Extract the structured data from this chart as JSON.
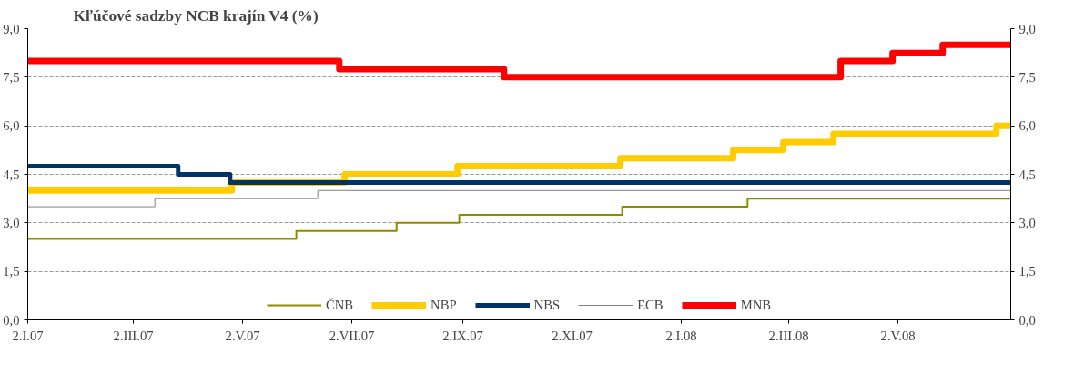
{
  "chart_data": {
    "type": "step",
    "title": "Kľúčové sadzby NCB krajín V4 (%)",
    "xlim": [
      "2007-01-02",
      "2008-07-04"
    ],
    "xticks": [
      {
        "value": "2007-01-02",
        "label": "2.I.07"
      },
      {
        "value": "2007-03-02",
        "label": "2.III.07"
      },
      {
        "value": "2007-05-02",
        "label": "2.V.07"
      },
      {
        "value": "2007-07-02",
        "label": "2.VII.07"
      },
      {
        "value": "2007-09-02",
        "label": "2.IX.07"
      },
      {
        "value": "2007-11-02",
        "label": "2.XI.07"
      },
      {
        "value": "2008-01-02",
        "label": "2.I.08"
      },
      {
        "value": "2008-03-02",
        "label": "2.III.08"
      },
      {
        "value": "2008-05-02",
        "label": "2.V.08"
      }
    ],
    "ylim": [
      0,
      9
    ],
    "yticks": [
      {
        "value": 0,
        "label": "0,0"
      },
      {
        "value": 1.5,
        "label": "1,5"
      },
      {
        "value": 3,
        "label": "3,0"
      },
      {
        "value": 4.5,
        "label": "4,5"
      },
      {
        "value": 6,
        "label": "6,0"
      },
      {
        "value": 7.5,
        "label": "7,5"
      },
      {
        "value": 9,
        "label": "9,0"
      }
    ],
    "y2lim": [
      0,
      9
    ],
    "y2ticks": [
      {
        "value": 0,
        "label": "0,0"
      },
      {
        "value": 1.5,
        "label": "1,5"
      },
      {
        "value": 3,
        "label": "3,0"
      },
      {
        "value": 4.5,
        "label": "4,5"
      },
      {
        "value": 6,
        "label": "6,0"
      },
      {
        "value": 7.5,
        "label": "7,5"
      },
      {
        "value": 9,
        "label": "9,0"
      }
    ],
    "grid": "y",
    "legend": "bottom",
    "series": [
      {
        "name": "ČNB",
        "color": "#8c8c00",
        "x": [
          "2007-01-02",
          "2007-06-01",
          "2007-07-27",
          "2007-08-31",
          "2007-11-30",
          "2008-02-08",
          "2008-07-04"
        ],
        "values": [
          2.5,
          2.75,
          3.0,
          3.25,
          3.5,
          3.75,
          3.75
        ]
      },
      {
        "name": "NBP",
        "color": "#ffcc00",
        "x": [
          "2007-01-02",
          "2007-04-26",
          "2007-06-28",
          "2007-08-30",
          "2007-11-29",
          "2008-01-31",
          "2008-02-28",
          "2008-03-27",
          "2008-06-26",
          "2008-07-04"
        ],
        "values": [
          4.0,
          4.25,
          4.5,
          4.75,
          5.0,
          5.25,
          5.5,
          5.75,
          6.0,
          6.0
        ]
      },
      {
        "name": "NBS",
        "color": "#003366",
        "x": [
          "2007-01-02",
          "2007-03-27",
          "2007-04-25",
          "2008-07-04"
        ],
        "values": [
          4.75,
          4.5,
          4.25,
          4.25
        ]
      },
      {
        "name": "ECB",
        "color": "#808080",
        "x": [
          "2007-01-02",
          "2007-03-14",
          "2007-06-13",
          "2008-07-04"
        ],
        "values": [
          3.5,
          3.75,
          4.0,
          4.0
        ]
      },
      {
        "name": "MNB",
        "color": "#ff0000",
        "x": [
          "2007-01-02",
          "2007-06-25",
          "2007-09-25",
          "2008-03-31",
          "2008-04-29",
          "2008-05-27",
          "2008-07-04"
        ],
        "values": [
          8.0,
          7.75,
          7.5,
          8.0,
          8.25,
          8.5,
          8.5
        ]
      }
    ]
  }
}
